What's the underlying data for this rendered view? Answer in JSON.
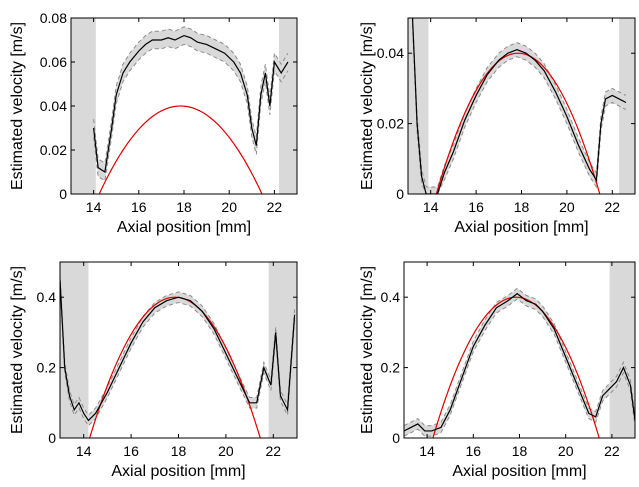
{
  "chart_data": [
    {
      "type": "line",
      "xlabel": "Axial position [mm]",
      "ylabel": "Estimated velocity [m/s]",
      "xlim": [
        13,
        23
      ],
      "ylim": [
        0,
        0.08
      ],
      "xticks": [
        14,
        16,
        18,
        20,
        22
      ],
      "yticks": [
        0,
        0.02,
        0.04,
        0.06,
        0.08
      ],
      "ytick_labels": [
        "0",
        "0.02",
        "0.04",
        "0.06",
        "0.08"
      ],
      "true_profile": {
        "color": "#e00000",
        "center": 17.85,
        "half_width": 3.6,
        "peak": 0.04
      },
      "estimate": {
        "color": "#000000",
        "x": [
          14.0,
          14.2,
          14.5,
          14.8,
          15.0,
          15.3,
          15.6,
          16.0,
          16.3,
          16.6,
          17.0,
          17.3,
          17.6,
          18.0,
          18.3,
          18.6,
          19.0,
          19.4,
          19.8,
          20.2,
          20.5,
          20.8,
          21.0,
          21.2,
          21.4,
          21.6,
          21.8,
          22.0,
          22.3,
          22.6
        ],
        "y": [
          0.03,
          0.012,
          0.01,
          0.03,
          0.045,
          0.055,
          0.06,
          0.065,
          0.068,
          0.07,
          0.07,
          0.071,
          0.07,
          0.072,
          0.071,
          0.069,
          0.068,
          0.066,
          0.064,
          0.06,
          0.055,
          0.045,
          0.03,
          0.022,
          0.045,
          0.055,
          0.04,
          0.06,
          0.055,
          0.06
        ],
        "band": 0.004,
        "band_color": "#d9d9d9",
        "edge_color": "#8c8c8c"
      },
      "shaded_regions": [
        [
          13,
          14.1
        ],
        [
          22.2,
          23
        ]
      ]
    },
    {
      "type": "line",
      "xlabel": "Axial position [mm]",
      "ylabel": "Estimated velocity [m/s]",
      "xlim": [
        13,
        23
      ],
      "ylim": [
        0,
        0.05
      ],
      "xticks": [
        14,
        16,
        18,
        20,
        22
      ],
      "yticks": [
        0,
        0.02,
        0.04
      ],
      "ytick_labels": [
        "0",
        "0.02",
        "0.04"
      ],
      "true_profile": {
        "color": "#e00000",
        "center": 17.85,
        "half_width": 3.6,
        "peak": 0.04
      },
      "estimate": {
        "color": "#000000",
        "x": [
          13.2,
          13.4,
          13.6,
          13.8,
          14.0,
          14.3,
          14.6,
          15.0,
          15.5,
          16.0,
          16.5,
          17.0,
          17.4,
          17.8,
          18.2,
          18.6,
          19.0,
          19.5,
          20.0,
          20.5,
          21.0,
          21.3,
          21.5,
          21.7,
          22.0,
          22.3,
          22.6
        ],
        "y": [
          0.05,
          0.02,
          0.005,
          0.0,
          0.0,
          0.0,
          0.006,
          0.012,
          0.021,
          0.028,
          0.034,
          0.038,
          0.04,
          0.041,
          0.04,
          0.038,
          0.035,
          0.029,
          0.022,
          0.014,
          0.007,
          0.004,
          0.02,
          0.027,
          0.028,
          0.027,
          0.026
        ],
        "band": 0.002,
        "band_color": "#d9d9d9",
        "edge_color": "#8c8c8c"
      },
      "shaded_regions": [
        [
          13,
          13.9
        ],
        [
          22.3,
          23
        ]
      ]
    },
    {
      "type": "line",
      "xlabel": "Axial position [mm]",
      "ylabel": "Estimated velocity [m/s]",
      "xlim": [
        13,
        23
      ],
      "ylim": [
        0,
        0.5
      ],
      "xticks": [
        14,
        16,
        18,
        20,
        22
      ],
      "yticks": [
        0,
        0.2,
        0.4
      ],
      "ytick_labels": [
        "0",
        "0.2",
        "0.4"
      ],
      "true_profile": {
        "color": "#e00000",
        "center": 17.85,
        "half_width": 3.6,
        "peak": 0.4
      },
      "estimate": {
        "color": "#000000",
        "x": [
          13.0,
          13.2,
          13.4,
          13.6,
          13.8,
          14.0,
          14.2,
          14.5,
          15.0,
          15.5,
          16.0,
          16.5,
          17.0,
          17.5,
          18.0,
          18.5,
          19.0,
          19.5,
          20.0,
          20.5,
          21.0,
          21.3,
          21.6,
          21.9,
          22.1,
          22.3,
          22.6,
          22.9
        ],
        "y": [
          0.45,
          0.2,
          0.12,
          0.08,
          0.1,
          0.07,
          0.05,
          0.07,
          0.13,
          0.2,
          0.27,
          0.33,
          0.37,
          0.39,
          0.4,
          0.39,
          0.36,
          0.31,
          0.24,
          0.17,
          0.1,
          0.1,
          0.2,
          0.15,
          0.3,
          0.12,
          0.08,
          0.35
        ],
        "band": 0.015,
        "band_color": "#d9d9d9",
        "edge_color": "#8c8c8c"
      },
      "shaded_regions": [
        [
          13,
          14.2
        ],
        [
          21.8,
          23
        ]
      ]
    },
    {
      "type": "line",
      "xlabel": "Axial position [mm]",
      "ylabel": "Estimated velocity [m/s]",
      "xlim": [
        13,
        23
      ],
      "ylim": [
        0,
        0.5
      ],
      "xticks": [
        14,
        16,
        18,
        20,
        22
      ],
      "yticks": [
        0,
        0.2,
        0.4
      ],
      "ytick_labels": [
        "0",
        "0.2",
        "0.4"
      ],
      "true_profile": {
        "color": "#e00000",
        "center": 17.85,
        "half_width": 3.6,
        "peak": 0.4
      },
      "estimate": {
        "color": "#000000",
        "x": [
          13.0,
          13.3,
          13.6,
          13.9,
          14.2,
          14.6,
          15.0,
          15.5,
          16.0,
          16.5,
          17.0,
          17.5,
          17.9,
          18.3,
          18.7,
          19.0,
          19.5,
          20.0,
          20.5,
          21.0,
          21.3,
          21.6,
          21.9,
          22.2,
          22.5,
          22.8,
          23.0
        ],
        "y": [
          0.02,
          0.03,
          0.04,
          0.02,
          0.02,
          0.03,
          0.08,
          0.17,
          0.26,
          0.32,
          0.37,
          0.39,
          0.41,
          0.39,
          0.38,
          0.36,
          0.31,
          0.23,
          0.15,
          0.07,
          0.06,
          0.12,
          0.14,
          0.16,
          0.2,
          0.15,
          0.05
        ],
        "band": 0.015,
        "band_color": "#d9d9d9",
        "edge_color": "#8c8c8c"
      },
      "shaded_regions": [
        [
          21.9,
          23
        ]
      ]
    }
  ]
}
